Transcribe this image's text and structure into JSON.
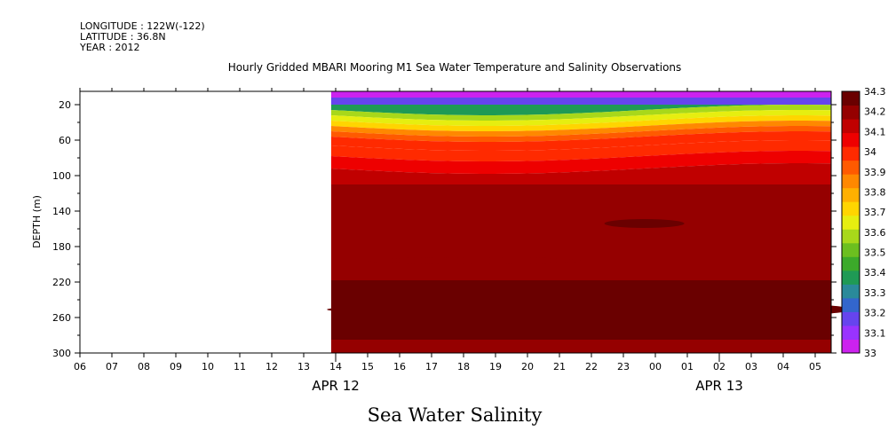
{
  "header": {
    "longitude": "LONGITUDE : 122W(-122)",
    "latitude": "LATITUDE : 36.8N",
    "year": "YEAR : 2012"
  },
  "chart_data": {
    "type": "heatmap",
    "title": "Hourly Gridded MBARI Mooring M1 Sea Water Temperature and Salinity Observations",
    "bottom_title": "Sea Water Salinity",
    "ylabel": "DEPTH (m)",
    "ylim": [
      300,
      5
    ],
    "y_ticks": [
      20,
      60,
      100,
      140,
      180,
      220,
      260,
      300
    ],
    "x_ticks": [
      "06",
      "07",
      "08",
      "09",
      "10",
      "11",
      "12",
      "13",
      "14",
      "15",
      "16",
      "17",
      "18",
      "19",
      "20",
      "21",
      "22",
      "23",
      "00",
      "01",
      "02",
      "03",
      "04",
      "05"
    ],
    "date_labels": [
      {
        "label": "APR 12",
        "at_tick": "14"
      },
      {
        "label": "APR 13",
        "at_tick": "02"
      }
    ],
    "data_start_hour_index": 7.8,
    "colorbar_levels": [
      "33",
      "33.1",
      "33.2",
      "33.3",
      "33.4",
      "33.5",
      "33.6",
      "33.7",
      "33.8",
      "33.9",
      "34",
      "34.1",
      "34.2",
      "34.3"
    ],
    "colorbar_colors": [
      "#cc22ee",
      "#9933ff",
      "#6644ee",
      "#3366cc",
      "#2a8a9a",
      "#1f9a55",
      "#3caa2a",
      "#6cbf1f",
      "#a8d81a",
      "#e6ee10",
      "#ffd500",
      "#ffb000",
      "#ff8800",
      "#ff5a00",
      "#ff2a00",
      "#ee0000",
      "#c00000",
      "#950000",
      "#6a0000"
    ],
    "depth_profile": [
      {
        "depth_max": 12,
        "salinity": 33.05
      },
      {
        "depth_max": 20,
        "salinity": 33.2
      },
      {
        "depth_max": 26,
        "salinity": 33.4
      },
      {
        "depth_max": 32,
        "salinity": 33.55
      },
      {
        "depth_max": 38,
        "salinity": 33.65
      },
      {
        "depth_max": 44,
        "salinity": 33.75
      },
      {
        "depth_max": 50,
        "salinity": 33.85
      },
      {
        "depth_max": 56,
        "salinity": 33.92
      },
      {
        "depth_max": 66,
        "salinity": 33.97
      },
      {
        "depth_max": 78,
        "salinity": 34.02
      },
      {
        "depth_max": 92,
        "salinity": 34.07
      },
      {
        "depth_max": 110,
        "salinity": 34.12
      },
      {
        "depth_max": 130,
        "salinity": 34.17
      },
      {
        "depth_max": 218,
        "salinity": 34.22
      },
      {
        "depth_max": 232,
        "salinity": 34.25
      },
      {
        "depth_max": 285,
        "salinity": 34.28
      },
      {
        "depth_max": 300,
        "salinity": 34.22
      }
    ]
  }
}
